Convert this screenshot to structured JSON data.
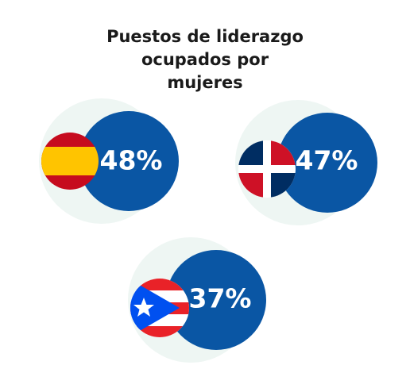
{
  "chart_data": {
    "type": "bubble",
    "title": "Puestos de liderazgo ocupados por mujeres",
    "values": [
      48,
      47,
      37
    ],
    "value_labels": [
      "48%",
      "47%",
      "37%"
    ],
    "color": "#0a56a4"
  }
}
